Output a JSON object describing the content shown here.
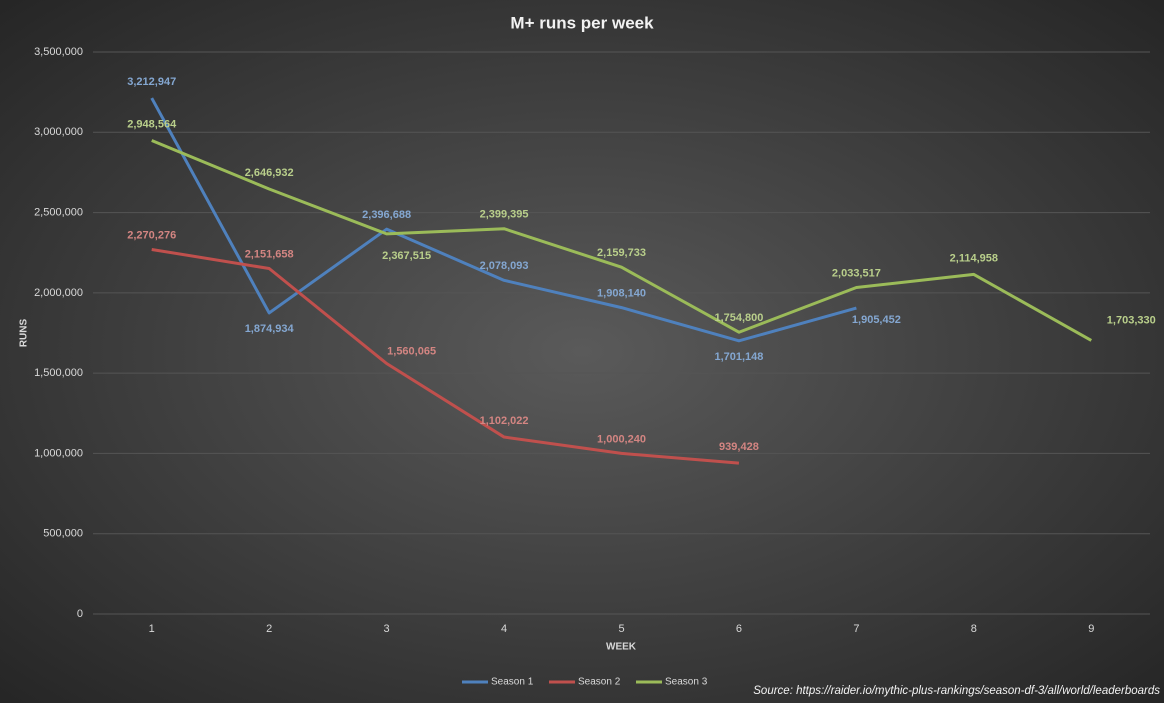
{
  "chart_data": {
    "type": "line",
    "title": "M+ runs per week",
    "x_label": "WEEK",
    "y_label": "RUNS",
    "source": "Source: https://raider.io/mythic-plus-rankings/season-df-3/all/world/leaderboards",
    "categories": [
      "1",
      "2",
      "3",
      "4",
      "5",
      "6",
      "7",
      "8",
      "9"
    ],
    "series": [
      {
        "name": "Season 1",
        "color": "#4f81bd",
        "values": [
          3212947,
          1874934,
          2396688,
          2078093,
          1908140,
          1701148,
          1905452,
          null,
          null
        ],
        "value_labels": [
          "3,212,947",
          "1,874,934",
          "2,396,688",
          "2,078,093",
          "1,908,140",
          "1,701,148",
          "1,905,452",
          null,
          null
        ]
      },
      {
        "name": "Season 2",
        "color": "#c0504d",
        "values": [
          2270276,
          2151658,
          1560065,
          1102022,
          1000240,
          939428,
          null,
          null,
          null
        ],
        "value_labels": [
          "2,270,276",
          "2,151,658",
          "1,560,065",
          "1,102,022",
          "1,000,240",
          "939,428",
          null,
          null,
          null
        ]
      },
      {
        "name": "Season 3",
        "color": "#9bbb59",
        "values": [
          2948564,
          2646932,
          2367515,
          2399395,
          2159733,
          1754800,
          2033517,
          2114958,
          1703330
        ],
        "value_labels": [
          "2,948,564",
          "2,646,932",
          "2,367,515",
          "2,399,395",
          "2,159,733",
          "1,754,800",
          "2,033,517",
          "2,114,958",
          "1,703,330"
        ]
      }
    ],
    "ylim": [
      0,
      3500000
    ],
    "yticks": [
      0,
      {
        "value": 500000,
        "label": "500,000"
      },
      {
        "value": 1000000,
        "label": "1,000,000"
      },
      {
        "value": 1500000,
        "label": "1,500,000"
      },
      {
        "value": 2000000,
        "label": "2,000,000"
      },
      {
        "value": 2500000,
        "label": "2,500,000"
      },
      {
        "value": 3000000,
        "label": "3,000,000"
      },
      {
        "value": 3500000,
        "label": "3,500,000"
      }
    ],
    "grid": true,
    "legend": "bottom"
  }
}
